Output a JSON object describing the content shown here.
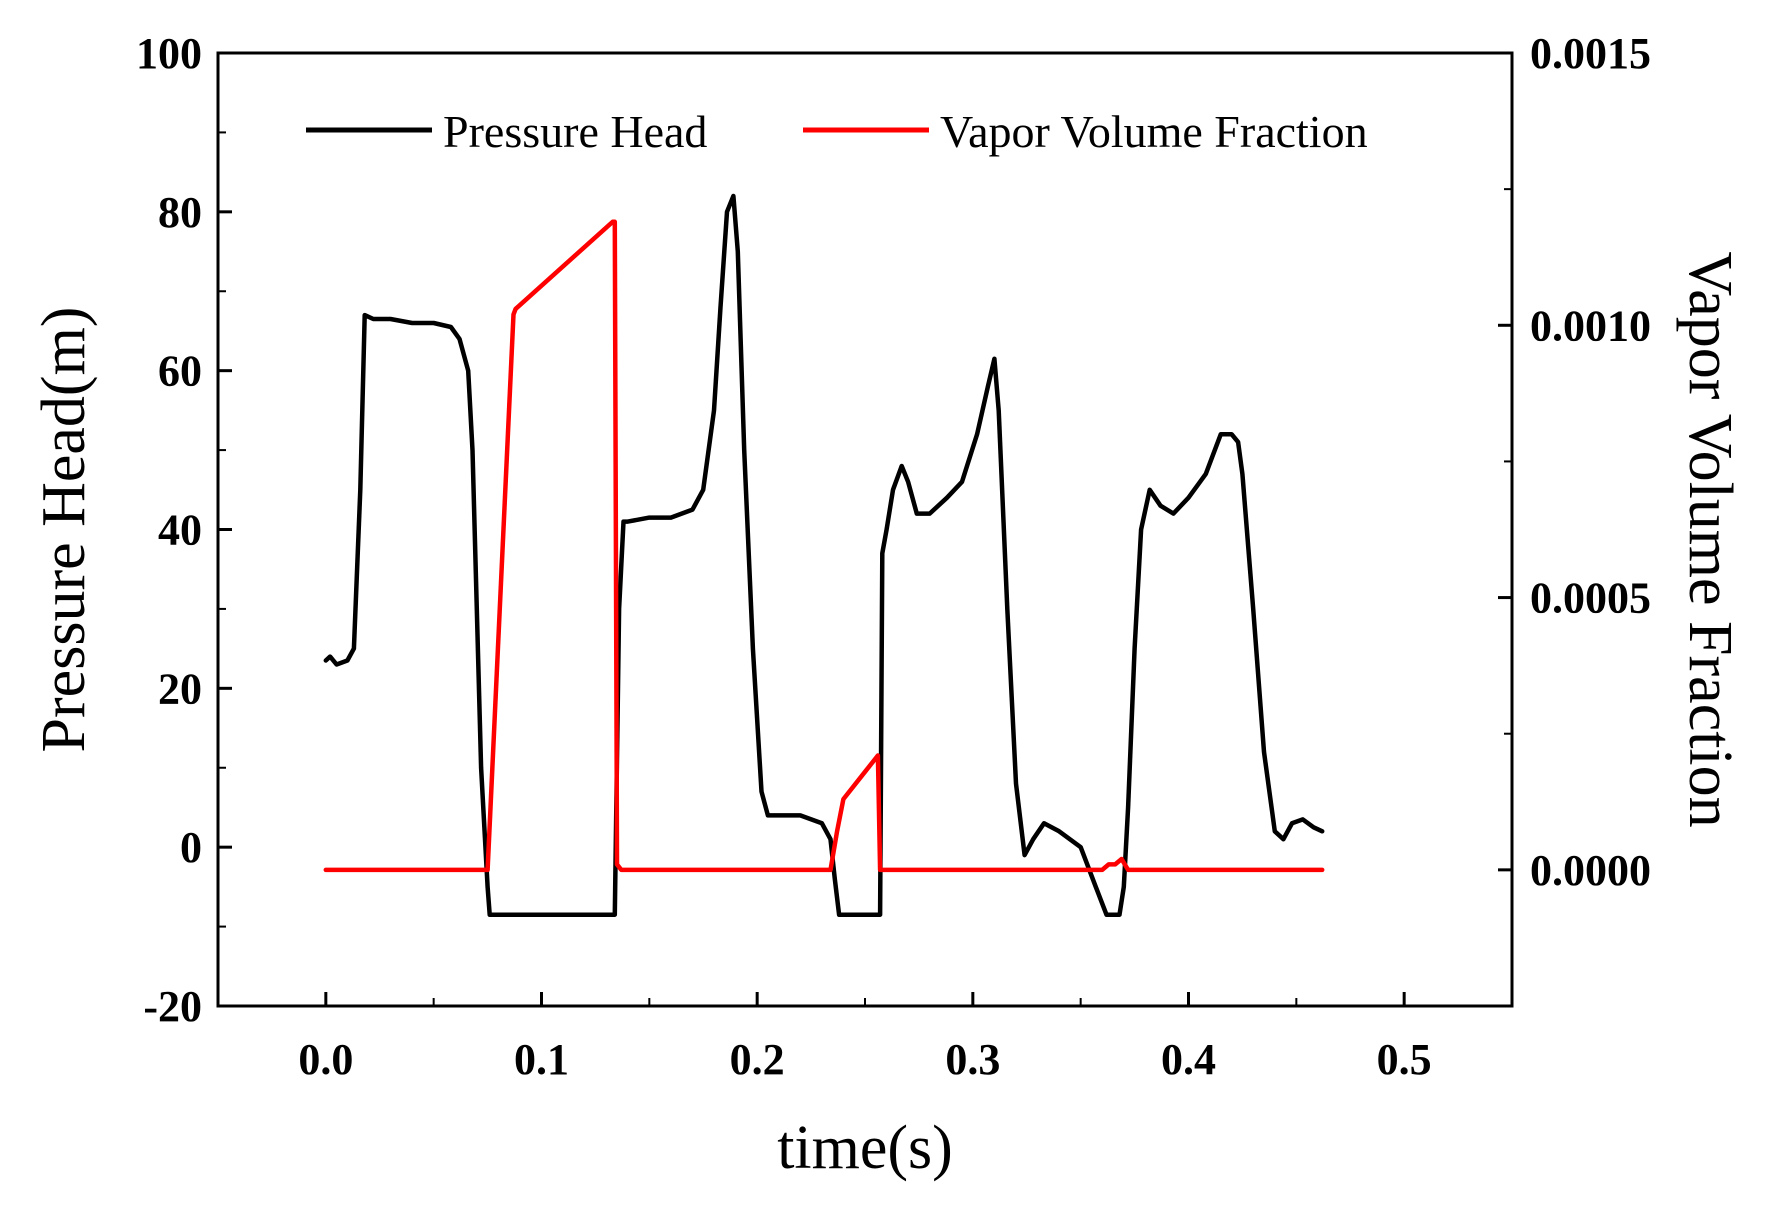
{
  "chart_data": {
    "type": "line",
    "title": "",
    "xlabel": "time(s)",
    "ylabel": "Pressure Head(m)",
    "y2label": "Vapor Volume Fraction",
    "xlim": [
      -0.05,
      0.55
    ],
    "ylim": [
      -20,
      100
    ],
    "y2lim": [
      -0.00025,
      0.0015
    ],
    "x_ticks": [
      0.0,
      0.1,
      0.2,
      0.3,
      0.4,
      0.5
    ],
    "x_tick_labels": [
      "0.0",
      "0.1",
      "0.2",
      "0.3",
      "0.4",
      "0.5"
    ],
    "y_ticks": [
      -20,
      0,
      20,
      40,
      60,
      80,
      100
    ],
    "y_tick_labels": [
      "-20",
      "0",
      "20",
      "40",
      "60",
      "80",
      "100"
    ],
    "y2_ticks": [
      0.0,
      0.0005,
      0.001,
      0.0015
    ],
    "y2_tick_labels": [
      "0.0000",
      "0.0005",
      "0.0010",
      "0.0015"
    ],
    "grid": false,
    "legend_position": "top",
    "series": [
      {
        "name": "Pressure Head",
        "axis": "left",
        "color": "#000000",
        "x": [
          0.0,
          0.002,
          0.005,
          0.01,
          0.013,
          0.016,
          0.018,
          0.022,
          0.03,
          0.04,
          0.05,
          0.058,
          0.062,
          0.066,
          0.068,
          0.07,
          0.072,
          0.075,
          0.076,
          0.078,
          0.09,
          0.11,
          0.13,
          0.134,
          0.136,
          0.138,
          0.14,
          0.15,
          0.16,
          0.17,
          0.175,
          0.18,
          0.183,
          0.186,
          0.189,
          0.191,
          0.194,
          0.198,
          0.202,
          0.205,
          0.21,
          0.22,
          0.23,
          0.234,
          0.236,
          0.238,
          0.24,
          0.25,
          0.257,
          0.258,
          0.26,
          0.263,
          0.267,
          0.27,
          0.274,
          0.28,
          0.288,
          0.295,
          0.302,
          0.307,
          0.31,
          0.312,
          0.316,
          0.32,
          0.324,
          0.328,
          0.333,
          0.34,
          0.35,
          0.357,
          0.362,
          0.364,
          0.368,
          0.37,
          0.372,
          0.375,
          0.378,
          0.382,
          0.387,
          0.393,
          0.4,
          0.408,
          0.415,
          0.42,
          0.423,
          0.425,
          0.43,
          0.435,
          0.44,
          0.444,
          0.448,
          0.453,
          0.458,
          0.462
        ],
        "y": [
          23.5,
          24,
          23,
          23.5,
          25,
          45,
          67,
          66.5,
          66.5,
          66,
          66,
          65.5,
          64,
          60,
          50,
          30,
          10,
          -5,
          -8.5,
          -8.5,
          -8.5,
          -8.5,
          -8.5,
          -8.5,
          30,
          41,
          41,
          41.5,
          41.5,
          42.5,
          45,
          55,
          68,
          80,
          82,
          75,
          50,
          25,
          7,
          4,
          4,
          4,
          3,
          1,
          -4,
          -8.5,
          -8.5,
          -8.5,
          -8.5,
          37,
          40,
          45,
          48,
          46,
          42,
          42,
          44,
          46,
          52,
          58,
          61.5,
          55,
          30,
          8,
          -1,
          1,
          3,
          2,
          0,
          -5,
          -8.5,
          -8.5,
          -8.5,
          -5,
          5,
          25,
          40,
          45,
          43,
          42,
          44,
          47,
          52,
          52,
          51,
          47,
          30,
          12,
          2,
          1,
          3,
          3.5,
          2.5,
          2
        ],
        "legend_label": "Pressure Head"
      },
      {
        "name": "Vapor Volume Fraction",
        "axis": "right",
        "color": "#ff0000",
        "x": [
          0.0,
          0.075,
          0.087,
          0.088,
          0.133,
          0.134,
          0.135,
          0.137,
          0.234,
          0.237,
          0.24,
          0.25,
          0.256,
          0.257,
          0.26,
          0.36,
          0.363,
          0.366,
          0.369,
          0.372,
          0.462
        ],
        "y": [
          0.0,
          0.0,
          0.00102,
          0.00103,
          0.00119,
          0.00119,
          1e-05,
          0.0,
          0.0,
          7e-05,
          0.00013,
          0.00018,
          0.00021,
          0.0,
          0.0,
          0.0,
          1e-05,
          1e-05,
          2e-05,
          0.0,
          0.0
        ],
        "legend_label": "Vapor Volume Fraction"
      }
    ]
  }
}
